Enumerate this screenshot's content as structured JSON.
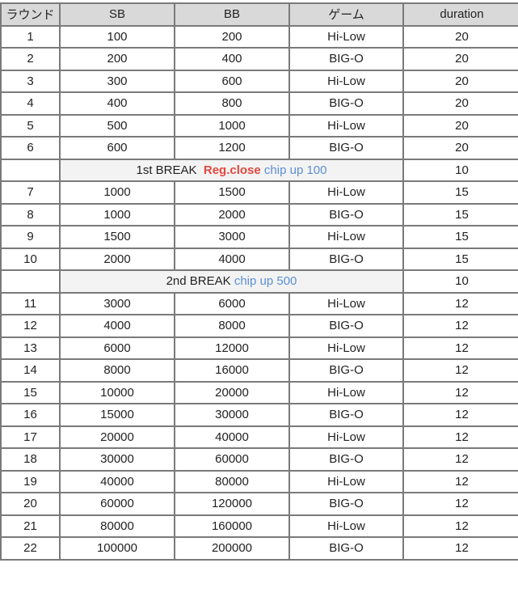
{
  "headers": [
    "ラウンド",
    "SB",
    "BB",
    "ゲーム",
    "duration"
  ],
  "colors": {
    "header_bg": "#d9d9d9",
    "break_bg": "#f3f3f3",
    "reg_close": "#e0483e",
    "chip_up": "#5b8fd6"
  },
  "rows": [
    {
      "type": "level",
      "cells": [
        "1",
        "100",
        "200",
        "Hi-Low",
        "20"
      ]
    },
    {
      "type": "level",
      "cells": [
        "2",
        "200",
        "400",
        "BIG-O",
        "20"
      ]
    },
    {
      "type": "level",
      "cells": [
        "3",
        "300",
        "600",
        "Hi-Low",
        "20"
      ]
    },
    {
      "type": "level",
      "cells": [
        "4",
        "400",
        "800",
        "BIG-O",
        "20"
      ]
    },
    {
      "type": "level",
      "cells": [
        "5",
        "500",
        "1000",
        "Hi-Low",
        "20"
      ]
    },
    {
      "type": "level",
      "cells": [
        "6",
        "600",
        "1200",
        "BIG-O",
        "20"
      ]
    },
    {
      "type": "break",
      "label": "1st BREAK",
      "reg_close": "Reg.close",
      "chip_up": "chip up 100",
      "duration": "10"
    },
    {
      "type": "level",
      "cells": [
        "7",
        "1000",
        "1500",
        "Hi-Low",
        "15"
      ]
    },
    {
      "type": "level",
      "cells": [
        "8",
        "1000",
        "2000",
        "BIG-O",
        "15"
      ]
    },
    {
      "type": "level",
      "cells": [
        "9",
        "1500",
        "3000",
        "Hi-Low",
        "15"
      ]
    },
    {
      "type": "level",
      "cells": [
        "10",
        "2000",
        "4000",
        "BIG-O",
        "15"
      ]
    },
    {
      "type": "break",
      "label": "2nd BREAK",
      "reg_close": "",
      "chip_up": "chip up 500",
      "duration": "10"
    },
    {
      "type": "level",
      "cells": [
        "11",
        "3000",
        "6000",
        "Hi-Low",
        "12"
      ]
    },
    {
      "type": "level",
      "cells": [
        "12",
        "4000",
        "8000",
        "BIG-O",
        "12"
      ]
    },
    {
      "type": "level",
      "cells": [
        "13",
        "6000",
        "12000",
        "Hi-Low",
        "12"
      ]
    },
    {
      "type": "level",
      "cells": [
        "14",
        "8000",
        "16000",
        "BIG-O",
        "12"
      ]
    },
    {
      "type": "level",
      "cells": [
        "15",
        "10000",
        "20000",
        "Hi-Low",
        "12"
      ]
    },
    {
      "type": "level",
      "cells": [
        "16",
        "15000",
        "30000",
        "BIG-O",
        "12"
      ]
    },
    {
      "type": "level",
      "cells": [
        "17",
        "20000",
        "40000",
        "Hi-Low",
        "12"
      ]
    },
    {
      "type": "level",
      "cells": [
        "18",
        "30000",
        "60000",
        "BIG-O",
        "12"
      ]
    },
    {
      "type": "level",
      "cells": [
        "19",
        "40000",
        "80000",
        "Hi-Low",
        "12"
      ]
    },
    {
      "type": "level",
      "cells": [
        "20",
        "60000",
        "120000",
        "BIG-O",
        "12"
      ]
    },
    {
      "type": "level",
      "cells": [
        "21",
        "80000",
        "160000",
        "Hi-Low",
        "12"
      ]
    },
    {
      "type": "level",
      "cells": [
        "22",
        "100000",
        "200000",
        "BIG-O",
        "12"
      ]
    }
  ]
}
